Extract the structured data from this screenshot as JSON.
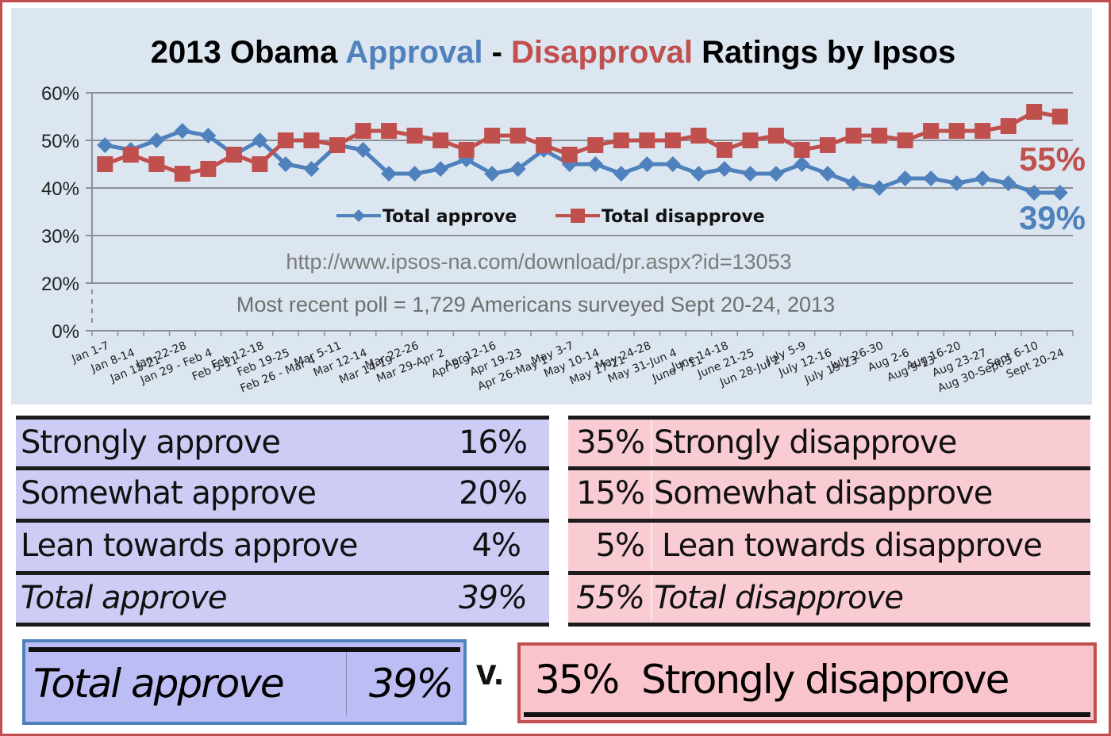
{
  "title": {
    "part1": "2013 Obama ",
    "approval": "Approval",
    "dash": " - ",
    "disapproval": "Disapproval",
    "part2": " Ratings by Ipsos"
  },
  "colors": {
    "approve": "#4f81bd",
    "disapprove": "#c0504d",
    "chart_bg": "#dce6f0",
    "gridline": "#8c9096",
    "approve_table_bg": "#ccccf5",
    "disapprove_table_bg": "#f9ccd3"
  },
  "chart_data": {
    "type": "line",
    "title": "2013 Obama Approval - Disapproval Ratings by Ipsos",
    "xlabel": "",
    "ylabel": "",
    "ylim": [
      0,
      60
    ],
    "yticks": [
      "0%",
      "20%",
      "30%",
      "40%",
      "50%",
      "60%"
    ],
    "ytick_values": [
      0,
      20,
      30,
      40,
      50,
      60
    ],
    "axis_break": "between 0% and 20%",
    "grid": true,
    "legend_position": "center",
    "categories": [
      "Jan 1-7",
      "Jan 8-14",
      "Jan 15-21",
      "Jan 22-28",
      "Jan 29 - Feb 4",
      "Feb 5-11",
      "Feb 12-18",
      "Feb 19-25",
      "Feb 26 - Mar 4",
      "Mar 5-11",
      "Mar 12-14",
      "Mar 14-19",
      "Mar 22-26",
      "Mar 29-Apr 2",
      "Apr 5-9",
      "Apr 12-16",
      "Apr 19-23",
      "Apr 26-May 1",
      "May 3-7",
      "May 10-14",
      "May 17-21",
      "May 24-28",
      "May 31-Jun 4",
      "June 7-11",
      "June 14-18",
      "June 21-25",
      "Jun 28-Jul 2",
      "July 5-9",
      "July 12-16",
      "July 19-23",
      "July 26-30",
      "Aug 2-6",
      "Aug 9-13",
      "Aug 16-20",
      "Aug 23-27",
      "Aug 30-Sept 3",
      "Sept 6-10",
      "Sept 20-24"
    ],
    "series": [
      {
        "name": "Total approve",
        "marker": "diamond",
        "values": [
          49,
          48,
          50,
          52,
          51,
          47,
          50,
          45,
          44,
          49,
          48,
          43,
          43,
          44,
          46,
          43,
          44,
          48,
          45,
          45,
          43,
          45,
          45,
          43,
          44,
          43,
          43,
          45,
          43,
          41,
          40,
          42,
          42,
          41,
          42,
          41,
          39,
          39
        ]
      },
      {
        "name": "Total disapprove",
        "marker": "square",
        "values": [
          45,
          47,
          45,
          43,
          44,
          47,
          45,
          50,
          50,
          49,
          52,
          52,
          51,
          50,
          48,
          51,
          51,
          49,
          47,
          49,
          50,
          50,
          50,
          51,
          48,
          50,
          51,
          48,
          49,
          51,
          51,
          50,
          52,
          52,
          52,
          53,
          56,
          55
        ]
      }
    ],
    "annotations": {
      "disapprove_final": "55%",
      "approve_final": "39%",
      "source_url": "http://www.ipsos-na.com/download/pr.aspx?id=13053",
      "note": "Most recent poll = 1,729 Americans surveyed Sept 20-24, 2013"
    }
  },
  "approve_table": [
    {
      "label": "Strongly approve",
      "value": "16%"
    },
    {
      "label": "Somewhat approve",
      "value": "20%"
    },
    {
      "label": "Lean towards approve",
      "value": "4%"
    },
    {
      "label": "Total approve",
      "value": "39%"
    }
  ],
  "disapprove_table": [
    {
      "value": "35%",
      "label": "Strongly disapprove"
    },
    {
      "value": "15%",
      "label": "Somewhat disapprove"
    },
    {
      "value": "5%",
      "label": "Lean towards disapprove"
    },
    {
      "value": "55%",
      "label": "Total disapprove"
    }
  ],
  "comparison": {
    "left_label": "Total approve",
    "left_value": "39%",
    "versus": "v.",
    "right_value": "35%",
    "right_label": "Strongly disapprove"
  }
}
